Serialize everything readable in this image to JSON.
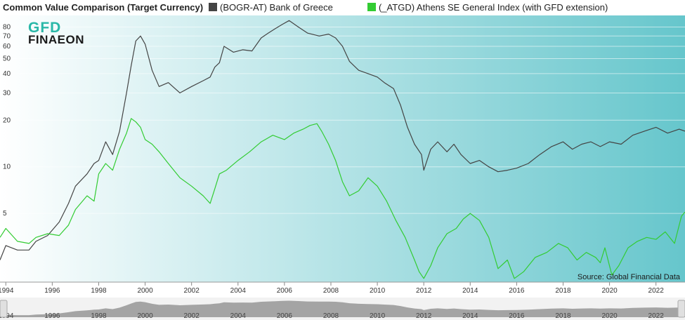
{
  "header": {
    "title": "Common Value Comparison (Target Currency)"
  },
  "logo": {
    "line1": "GFD",
    "line2": "FINAEON"
  },
  "source_label": "Source: Global Financial Data",
  "colors": {
    "series1": "#444444",
    "series2": "#33cc33",
    "plot_bg_start": "#ffffff",
    "plot_bg_end": "#66c6cc",
    "navigator_fill": "#8a8a8a"
  },
  "chart_data": {
    "type": "line",
    "y_scale": "log",
    "ylim": [
      1.8,
      95
    ],
    "xlim": [
      1993.75,
      2023.25
    ],
    "y_ticks": [
      5,
      10,
      20,
      30,
      40,
      50,
      60,
      70,
      80
    ],
    "x_ticks": [
      1994,
      1996,
      1998,
      2000,
      2002,
      2004,
      2006,
      2008,
      2010,
      2012,
      2014,
      2016,
      2018,
      2020,
      2022
    ],
    "grid": true,
    "legend_position": "top",
    "series": [
      {
        "name": "(BOGR-AT) Bank of Greece",
        "color": "#444444",
        "x": [
          1993.75,
          1994.0,
          1994.5,
          1995.0,
          1995.3,
          1995.8,
          1996.3,
          1996.7,
          1997.0,
          1997.5,
          1997.8,
          1998.0,
          1998.3,
          1998.6,
          1998.9,
          1999.2,
          1999.4,
          1999.6,
          1999.8,
          2000.0,
          2000.3,
          2000.6,
          2001.0,
          2001.5,
          2002.0,
          2002.5,
          2002.8,
          2003.0,
          2003.2,
          2003.4,
          2003.8,
          2004.2,
          2004.6,
          2005.0,
          2005.3,
          2005.6,
          2005.9,
          2006.2,
          2006.6,
          2007.0,
          2007.5,
          2007.9,
          2008.2,
          2008.5,
          2008.8,
          2009.2,
          2009.6,
          2010.0,
          2010.3,
          2010.7,
          2011.0,
          2011.3,
          2011.6,
          2011.9,
          2012.0,
          2012.3,
          2012.6,
          2013.0,
          2013.3,
          2013.6,
          2014.0,
          2014.4,
          2014.8,
          2015.2,
          2015.6,
          2016.0,
          2016.5,
          2017.0,
          2017.5,
          2018.0,
          2018.4,
          2018.8,
          2019.2,
          2019.6,
          2020.0,
          2020.5,
          2021.0,
          2021.5,
          2022.0,
          2022.5,
          2023.0,
          2023.25
        ],
        "y": [
          2.5,
          3.1,
          2.9,
          2.9,
          3.3,
          3.6,
          4.4,
          5.8,
          7.5,
          9.0,
          10.5,
          11.0,
          14.5,
          12.0,
          17.0,
          30.0,
          45.0,
          65.0,
          70.0,
          62.0,
          42.0,
          33.0,
          35.0,
          30.0,
          33.0,
          36.0,
          38.0,
          44.0,
          47.0,
          60.0,
          55.0,
          57.0,
          56.0,
          68.0,
          73.0,
          78.0,
          83.0,
          88.0,
          80.0,
          73.0,
          70.0,
          72.0,
          68.0,
          60.0,
          48.0,
          42.0,
          40.0,
          38.0,
          35.0,
          32.0,
          25.0,
          18.0,
          14.0,
          12.0,
          9.5,
          13.0,
          14.5,
          12.5,
          14.0,
          12.0,
          10.5,
          11.0,
          10.0,
          9.3,
          9.5,
          9.8,
          10.5,
          12.0,
          13.5,
          14.5,
          13.0,
          14.0,
          14.5,
          13.5,
          14.5,
          14.0,
          16.0,
          17.0,
          18.0,
          16.5,
          17.5,
          17.0
        ]
      },
      {
        "name": "(_ATGD) Athens SE General Index (with GFD extension)",
        "color": "#33cc33",
        "x": [
          1993.75,
          1994.0,
          1994.5,
          1995.0,
          1995.3,
          1995.8,
          1996.3,
          1996.7,
          1997.0,
          1997.5,
          1997.8,
          1998.0,
          1998.3,
          1998.6,
          1998.9,
          1999.2,
          1999.4,
          1999.6,
          1999.8,
          2000.0,
          2000.3,
          2000.6,
          2001.0,
          2001.5,
          2002.0,
          2002.5,
          2002.8,
          2003.0,
          2003.2,
          2003.5,
          2004.0,
          2004.5,
          2005.0,
          2005.5,
          2006.0,
          2006.4,
          2006.8,
          2007.1,
          2007.4,
          2007.6,
          2007.9,
          2008.2,
          2008.5,
          2008.8,
          2009.2,
          2009.6,
          2010.0,
          2010.4,
          2010.8,
          2011.2,
          2011.6,
          2011.8,
          2012.0,
          2012.3,
          2012.6,
          2013.0,
          2013.4,
          2013.7,
          2014.0,
          2014.4,
          2014.8,
          2015.2,
          2015.6,
          2015.9,
          2016.3,
          2016.8,
          2017.3,
          2017.8,
          2018.2,
          2018.6,
          2019.0,
          2019.4,
          2019.6,
          2019.8,
          2020.1,
          2020.4,
          2020.8,
          2021.2,
          2021.6,
          2022.0,
          2022.4,
          2022.8,
          2023.1,
          2023.25
        ],
        "y": [
          3.5,
          4.0,
          3.3,
          3.2,
          3.5,
          3.7,
          3.6,
          4.2,
          5.3,
          6.5,
          6.0,
          9.0,
          10.5,
          9.5,
          13.0,
          16.5,
          20.5,
          19.5,
          18.0,
          15.0,
          14.0,
          12.5,
          10.5,
          8.5,
          7.5,
          6.5,
          5.8,
          7.2,
          9.0,
          9.5,
          11.0,
          12.5,
          14.5,
          16.0,
          15.0,
          16.5,
          17.5,
          18.5,
          19.0,
          17.0,
          14.0,
          11.0,
          8.0,
          6.5,
          7.0,
          8.5,
          7.5,
          6.0,
          4.5,
          3.5,
          2.5,
          2.1,
          1.9,
          2.3,
          3.0,
          3.7,
          4.0,
          4.6,
          5.0,
          4.5,
          3.5,
          2.2,
          2.5,
          1.9,
          2.1,
          2.6,
          2.8,
          3.2,
          3.0,
          2.5,
          2.8,
          2.6,
          2.4,
          3.0,
          2.0,
          2.3,
          3.0,
          3.3,
          3.5,
          3.4,
          3.8,
          3.2,
          4.8,
          5.1
        ]
      }
    ]
  }
}
